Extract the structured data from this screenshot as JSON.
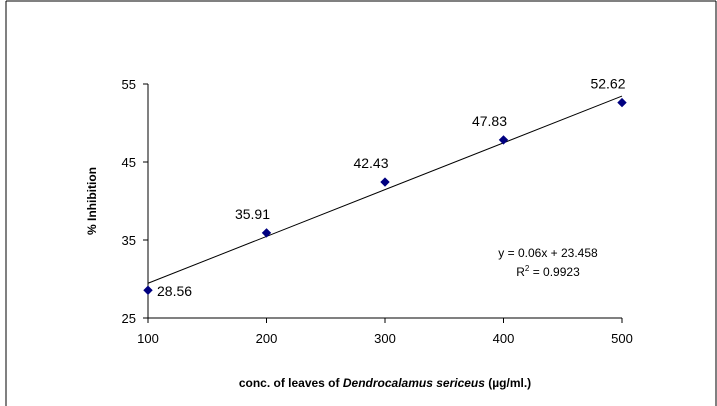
{
  "chart_data": {
    "type": "scatter",
    "title": "",
    "xlabel_prefix": "conc. of  leaves of ",
    "xlabel_species": "Dendrocalamus sericeus",
    "xlabel_suffix": " (µg/ml.)",
    "ylabel": "% Inhibition",
    "xlim": [
      100,
      500
    ],
    "ylim": [
      25,
      55
    ],
    "x_ticks": [
      "100",
      "200",
      "300",
      "400",
      "500"
    ],
    "y_ticks": [
      "25",
      "35",
      "45",
      "55"
    ],
    "grid": false,
    "legend": "none",
    "series": [
      {
        "x": [
          100,
          200,
          300,
          400,
          500
        ],
        "y": [
          28.56,
          35.91,
          42.43,
          47.83,
          52.62
        ],
        "labels": [
          "28.56",
          "35.91",
          "42.43",
          "47.83",
          "52.62"
        ],
        "color": "#000080"
      }
    ],
    "trendline": {
      "slope": 0.06,
      "intercept": 23.458,
      "equation": "y = 0.06x + 23.458",
      "r2_prefix": "R",
      "r2_exp": "2",
      "r2_suffix": " = 0.9923",
      "color": "#000000"
    }
  }
}
